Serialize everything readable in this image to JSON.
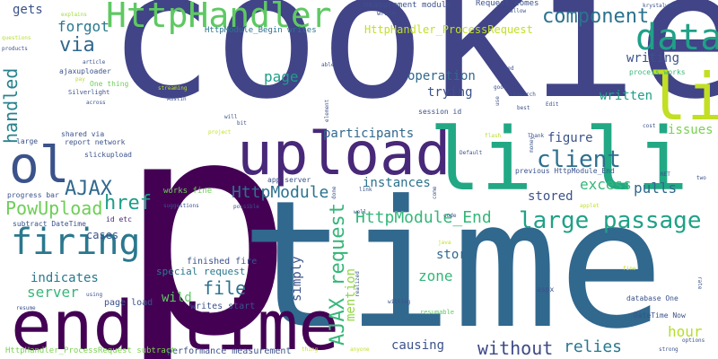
{
  "words": [
    {
      "text": "cookie",
      "color": "#414487"
    },
    {
      "text": "p",
      "color": "#440154"
    },
    {
      "text": "time",
      "color": "#31688e"
    },
    {
      "text": "li",
      "color": "#c2df23"
    },
    {
      "text": "li li",
      "color": "#22a884"
    },
    {
      "text": "end time",
      "color": "#440154"
    },
    {
      "text": "upload",
      "color": "#482878"
    },
    {
      "text": "HttpHandler",
      "color": "#5ec962"
    },
    {
      "text": "data",
      "color": "#1fa187"
    },
    {
      "text": "ol",
      "color": "#3b528b"
    },
    {
      "text": "firing",
      "color": "#2a788e"
    },
    {
      "text": "component",
      "color": "#2c728e"
    },
    {
      "text": "client",
      "color": "#2d708e"
    },
    {
      "text": "large passage",
      "color": "#1fa187"
    },
    {
      "text": "HttpModule",
      "color": "#2c728e"
    },
    {
      "text": "AJAX request",
      "color": "#35b779"
    },
    {
      "text": "HttpModule_End",
      "color": "#35b779"
    },
    {
      "text": "PowUpload",
      "color": "#6ece58"
    },
    {
      "text": "AJAX",
      "color": "#31688e"
    },
    {
      "text": "href",
      "color": "#1f9e89"
    },
    {
      "text": "handled",
      "color": "#26828e"
    },
    {
      "text": "via",
      "color": "#31688e"
    },
    {
      "text": "forgot",
      "color": "#2a788e"
    },
    {
      "text": "gets",
      "color": "#3b528b"
    },
    {
      "text": "page",
      "color": "#1f9e89"
    },
    {
      "text": "file",
      "color": "#2c728e"
    },
    {
      "text": "without",
      "color": "#3e4a89"
    },
    {
      "text": "relies",
      "color": "#2a788e"
    },
    {
      "text": "causing",
      "color": "#3b528b"
    },
    {
      "text": "server",
      "color": "#35b779"
    },
    {
      "text": "hour",
      "color": "#b5de2b"
    },
    {
      "text": "mention",
      "color": "#90d743"
    },
    {
      "text": "simply",
      "color": "#3b528b"
    },
    {
      "text": "zone",
      "color": "#35b779"
    },
    {
      "text": "store",
      "color": "#31688e"
    },
    {
      "text": "instances",
      "color": "#2c728e"
    },
    {
      "text": "stored",
      "color": "#3b528b"
    },
    {
      "text": "pulls",
      "color": "#31688e"
    },
    {
      "text": "excess",
      "color": "#35b779"
    },
    {
      "text": "figure",
      "color": "#3b528b"
    },
    {
      "text": "issues",
      "color": "#7ad151"
    },
    {
      "text": "written",
      "color": "#1f9e89"
    },
    {
      "text": "writing",
      "color": "#3b528b"
    },
    {
      "text": "operation",
      "color": "#31688e"
    },
    {
      "text": "trying",
      "color": "#3b528b"
    },
    {
      "text": "participants",
      "color": "#31688e"
    },
    {
      "text": "HttpHandler_ProcessRequest",
      "color": "#c2df23"
    },
    {
      "text": "cases",
      "color": "#3b528b"
    },
    {
      "text": "indicates",
      "color": "#2a788e"
    },
    {
      "text": "wild",
      "color": "#5ec962"
    },
    {
      "text": "finished fire",
      "color": "#3b528b"
    },
    {
      "text": "special request",
      "color": "#2a788e"
    },
    {
      "text": "works fine",
      "color": "#6ece58"
    },
    {
      "text": "writes start",
      "color": "#3b528b"
    },
    {
      "text": "page load",
      "color": "#3b528b"
    },
    {
      "text": "performance measurement",
      "color": "#3b528b"
    },
    {
      "text": "HttpHandler_ProcessRequest subtract",
      "color": "#7ad151"
    },
    {
      "text": "measurement module",
      "color": "#3b528b"
    },
    {
      "text": "Request comes",
      "color": "#3b528b"
    },
    {
      "text": "HttpModule_Begin writes",
      "color": "#2c728e"
    },
    {
      "text": "process works",
      "color": "#35b779"
    },
    {
      "text": "ajaxuploader",
      "color": "#3b528b"
    },
    {
      "text": "One thing",
      "color": "#6ece58"
    },
    {
      "text": "Silverlight",
      "color": "#3b528b"
    },
    {
      "text": "shared via",
      "color": "#3b528b"
    },
    {
      "text": "report network",
      "color": "#3b528b"
    },
    {
      "text": "slickupload",
      "color": "#3b528b"
    },
    {
      "text": "progress bar",
      "color": "#3b528b"
    },
    {
      "text": "subtract DateTime",
      "color": "#3b528b"
    },
    {
      "text": "id etc",
      "color": "#482878"
    },
    {
      "text": "app server",
      "color": "#3b528b"
    },
    {
      "text": "session id",
      "color": "#3b528b"
    },
    {
      "text": "previous HttpModule_End",
      "color": "#3b528b"
    },
    {
      "text": "DateTime Now",
      "color": "#3b528b"
    },
    {
      "text": "database One",
      "color": "#3b528b"
    },
    {
      "text": "resumable",
      "color": "#5ec962"
    },
    {
      "text": "aspx",
      "color": "#3b528b"
    },
    {
      "text": "large",
      "color": "#3b528b"
    },
    {
      "text": "explains",
      "color": "#9fda3a"
    },
    {
      "text": "questions",
      "color": "#b5de2b"
    },
    {
      "text": "products",
      "color": "#3b528b"
    },
    {
      "text": "article",
      "color": "#3b528b"
    },
    {
      "text": "pay",
      "color": "#b5de2b"
    },
    {
      "text": "across",
      "color": "#3b528b"
    },
    {
      "text": "streaming",
      "color": "#c2df23"
    },
    {
      "text": "Austin",
      "color": "#3b528b"
    },
    {
      "text": "will",
      "color": "#3b528b"
    },
    {
      "text": "bit",
      "color": "#3b528b"
    },
    {
      "text": "project",
      "color": "#c2df23"
    },
    {
      "text": "able",
      "color": "#3b528b"
    },
    {
      "text": "element",
      "color": "#3b528b"
    },
    {
      "text": "need",
      "color": "#3b528b"
    },
    {
      "text": "good",
      "color": "#3b528b"
    },
    {
      "text": "research",
      "color": "#3b528b"
    },
    {
      "text": "best",
      "color": "#3b528b"
    },
    {
      "text": "Edit",
      "color": "#3b528b"
    },
    {
      "text": "allow",
      "color": "#3b528b"
    },
    {
      "text": "krystalware",
      "color": "#3b528b"
    },
    {
      "text": "write",
      "color": "#3b528b"
    },
    {
      "text": "use",
      "color": "#3b528b"
    },
    {
      "text": "flash",
      "color": "#b5de2b"
    },
    {
      "text": "Thank",
      "color": "#3b528b"
    },
    {
      "text": "money",
      "color": "#3b528b"
    },
    {
      "text": "cost",
      "color": "#3b528b"
    },
    {
      "text": "Default",
      "color": "#3b528b"
    },
    {
      "text": "NET",
      "color": "#3b528b"
    },
    {
      "text": "two",
      "color": "#3b528b"
    },
    {
      "text": "applet",
      "color": "#c2df23"
    },
    {
      "text": "done",
      "color": "#3b528b"
    },
    {
      "text": "link",
      "color": "#3b528b"
    },
    {
      "text": "come",
      "color": "#3b528b"
    },
    {
      "text": "well",
      "color": "#3b528b"
    },
    {
      "text": "code",
      "color": "#3b528b"
    },
    {
      "text": "java",
      "color": "#c2df23"
    },
    {
      "text": "suggestions",
      "color": "#3b528b"
    },
    {
      "text": "possible",
      "color": "#3b528b"
    },
    {
      "text": "realized",
      "color": "#3b528b"
    },
    {
      "text": "willing",
      "color": "#3b528b"
    },
    {
      "text": "using",
      "color": "#3b528b"
    },
    {
      "text": "resume",
      "color": "#3b528b"
    },
    {
      "text": "thing",
      "color": "#c2df23"
    },
    {
      "text": "anyone",
      "color": "#c2df23"
    },
    {
      "text": "strong",
      "color": "#3b528b"
    },
    {
      "text": "options",
      "color": "#3b528b"
    },
    {
      "text": "fine",
      "color": "#c2df23"
    },
    {
      "text": "rate",
      "color": "#3b528b"
    }
  ]
}
